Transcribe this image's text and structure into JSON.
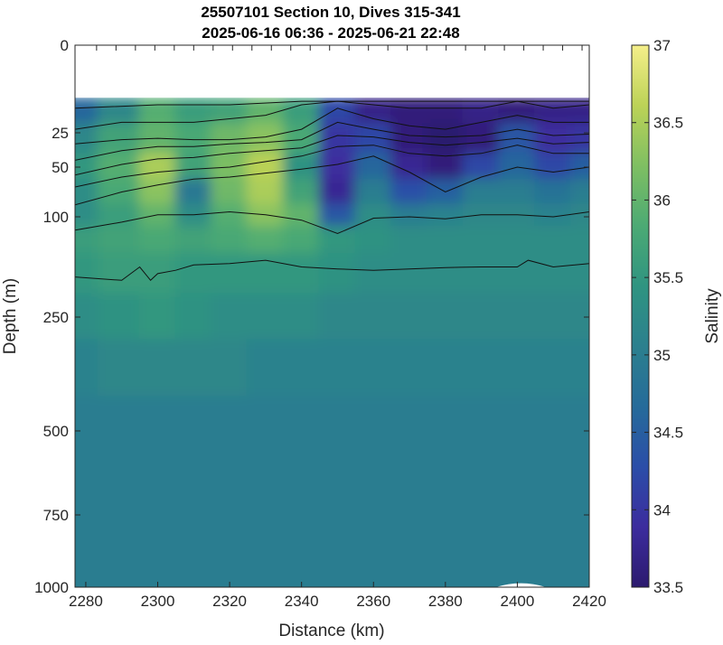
{
  "chart_data": {
    "type": "heatmap",
    "title_line1": "25507101 Section 10, Dives 315-341",
    "title_line2": "2025-06-16 06:36 - 2025-06-21 22:48",
    "xlabel": "Distance (km)",
    "ylabel": "Depth (m)",
    "colorbar_label": "Salinity",
    "xlim": [
      2277,
      2420
    ],
    "x_ticks": [
      2280,
      2300,
      2320,
      2340,
      2360,
      2380,
      2400,
      2420
    ],
    "y_ticks": [
      0,
      25,
      50,
      100,
      250,
      500,
      750,
      1000
    ],
    "y_scale": "nonlinear",
    "y_tick_labels": [
      "0",
      "25",
      "50",
      "100",
      "250",
      "500",
      "750",
      "1000"
    ],
    "colorbar_range": [
      33.5,
      37
    ],
    "colorbar_ticks": [
      33.5,
      34,
      34.5,
      35,
      35.5,
      36,
      36.5,
      37
    ],
    "colorbar_tick_labels": [
      "33.5",
      "34",
      "34.5",
      "35",
      "35.5",
      "36",
      "36.5",
      "37"
    ],
    "colormap": [
      "#2c1a6e",
      "#3c2c9e",
      "#2b4ea8",
      "#266b9a",
      "#2c808e",
      "#2f9481",
      "#4caa74",
      "#7fbf62",
      "#bcd257",
      "#f5ef8a"
    ],
    "data_top_depth": 15,
    "columns_x": [
      2277,
      2290,
      2300,
      2310,
      2320,
      2330,
      2340,
      2350,
      2360,
      2370,
      2380,
      2390,
      2400,
      2410,
      2420
    ],
    "rows_depth": [
      15,
      30,
      50,
      75,
      100,
      130,
      180,
      250,
      350,
      500,
      750,
      1000
    ],
    "salinity": [
      [
        34.6,
        35.2,
        35.9,
        35.6,
        35.7,
        36.0,
        35.6,
        34.2,
        33.7,
        33.6,
        33.6,
        33.7,
        33.6,
        33.7,
        33.7
      ],
      [
        35.2,
        35.7,
        36.0,
        35.8,
        36.1,
        36.3,
        35.8,
        34.0,
        34.2,
        33.6,
        33.5,
        33.6,
        34.4,
        33.9,
        34.0
      ],
      [
        35.5,
        35.9,
        36.5,
        35.7,
        36.2,
        36.6,
        35.4,
        33.9,
        34.6,
        33.8,
        33.6,
        34.2,
        34.6,
        34.2,
        34.5
      ],
      [
        35.3,
        35.8,
        36.3,
        34.9,
        36.1,
        36.5,
        35.7,
        33.8,
        35.0,
        34.3,
        34.5,
        35.0,
        35.0,
        34.8,
        35.0
      ],
      [
        35.3,
        35.6,
        36.0,
        35.3,
        35.9,
        36.3,
        36.0,
        34.4,
        35.3,
        35.0,
        35.1,
        35.2,
        35.2,
        35.1,
        35.2
      ],
      [
        35.6,
        35.7,
        35.8,
        35.7,
        35.8,
        35.9,
        35.8,
        35.5,
        35.4,
        35.3,
        35.3,
        35.3,
        35.3,
        35.3,
        35.3
      ],
      [
        35.5,
        35.6,
        35.6,
        35.5,
        35.5,
        35.5,
        35.5,
        35.4,
        35.3,
        35.3,
        35.3,
        35.3,
        35.3,
        35.3,
        35.3
      ],
      [
        35.3,
        35.4,
        35.5,
        35.4,
        35.3,
        35.3,
        35.3,
        35.2,
        35.2,
        35.2,
        35.2,
        35.2,
        35.2,
        35.2,
        35.2
      ],
      [
        35.1,
        35.2,
        35.2,
        35.2,
        35.2,
        35.1,
        35.1,
        35.1,
        35.1,
        35.1,
        35.1,
        35.1,
        35.1,
        35.1,
        35.1
      ],
      [
        35.0,
        35.0,
        35.0,
        35.0,
        35.0,
        35.0,
        35.0,
        35.0,
        35.0,
        35.0,
        35.0,
        35.0,
        35.0,
        35.0,
        35.0
      ],
      [
        35.0,
        35.0,
        35.0,
        35.0,
        35.0,
        35.0,
        35.0,
        35.0,
        35.0,
        35.0,
        35.0,
        35.0,
        35.0,
        35.0,
        35.0
      ],
      [
        35.0,
        35.0,
        35.0,
        35.0,
        35.0,
        35.0,
        35.0,
        35.0,
        35.0,
        35.0,
        35.0,
        35.0,
        35.0,
        35.0,
        35.0
      ]
    ],
    "contour_lines": [
      {
        "x": [
          2277,
          2300,
          2320,
          2340,
          2360,
          2380,
          2400,
          2420
        ],
        "depth": [
          18,
          17,
          17,
          16,
          16,
          16,
          16,
          16
        ]
      },
      {
        "x": [
          2277,
          2290,
          2300,
          2310,
          2320,
          2330,
          2340,
          2350,
          2360,
          2370,
          2380,
          2390,
          2400,
          2410,
          2420
        ],
        "depth": [
          24,
          22,
          22,
          22,
          21,
          20,
          17,
          16,
          17,
          18,
          18,
          18,
          16,
          18,
          17
        ]
      },
      {
        "x": [
          2277,
          2290,
          2300,
          2310,
          2320,
          2330,
          2340,
          2350,
          2360,
          2370,
          2380,
          2390,
          2400,
          2410,
          2420
        ],
        "depth": [
          33,
          30,
          29,
          30,
          30,
          28,
          24,
          18,
          21,
          23,
          24,
          22,
          20,
          22,
          22
        ]
      },
      {
        "x": [
          2277,
          2290,
          2300,
          2310,
          2320,
          2330,
          2340,
          2350,
          2360,
          2370,
          2380,
          2390,
          2400,
          2410,
          2420
        ],
        "depth": [
          45,
          38,
          35,
          35,
          33,
          32,
          30,
          22,
          24,
          27,
          28,
          27,
          24,
          27,
          26
        ]
      },
      {
        "x": [
          2277,
          2290,
          2300,
          2310,
          2320,
          2330,
          2340,
          2350,
          2360,
          2370,
          2380,
          2390,
          2400,
          2410,
          2420
        ],
        "depth": [
          58,
          48,
          44,
          43,
          40,
          38,
          36,
          27,
          28,
          32,
          34,
          32,
          29,
          33,
          32
        ]
      },
      {
        "x": [
          2277,
          2290,
          2300,
          2310,
          2320,
          2330,
          2340,
          2350,
          2360,
          2370,
          2380,
          2390,
          2400,
          2410,
          2420
        ],
        "depth": [
          70,
          60,
          55,
          52,
          50,
          46,
          42,
          35,
          34,
          40,
          42,
          40,
          34,
          40,
          40
        ]
      },
      {
        "x": [
          2277,
          2290,
          2300,
          2310,
          2320,
          2330,
          2340,
          2350,
          2360,
          2370,
          2380,
          2390,
          2400,
          2410,
          2420
        ],
        "depth": [
          88,
          75,
          68,
          62,
          60,
          56,
          52,
          48,
          42,
          55,
          75,
          60,
          50,
          55,
          50
        ]
      },
      {
        "x": [
          2277,
          2290,
          2300,
          2310,
          2320,
          2330,
          2340,
          2350,
          2360,
          2370,
          2380,
          2390,
          2400,
          2410,
          2420
        ],
        "depth": [
          120,
          108,
          98,
          98,
          95,
          98,
          105,
          125,
          102,
          100,
          103,
          98,
          98,
          100,
          95
        ]
      },
      {
        "x": [
          2277,
          2290,
          2295,
          2298,
          2300,
          2305,
          2310,
          2320,
          2330,
          2340,
          2350,
          2360,
          2370,
          2380,
          2390,
          2400,
          2403,
          2410,
          2420
        ],
        "depth": [
          190,
          195,
          175,
          195,
          185,
          180,
          172,
          170,
          165,
          175,
          178,
          180,
          178,
          176,
          175,
          175,
          165,
          175,
          170
        ]
      }
    ],
    "undefined_patch": {
      "x_start": 2394,
      "x_end": 2408,
      "depth_top": 985
    }
  }
}
